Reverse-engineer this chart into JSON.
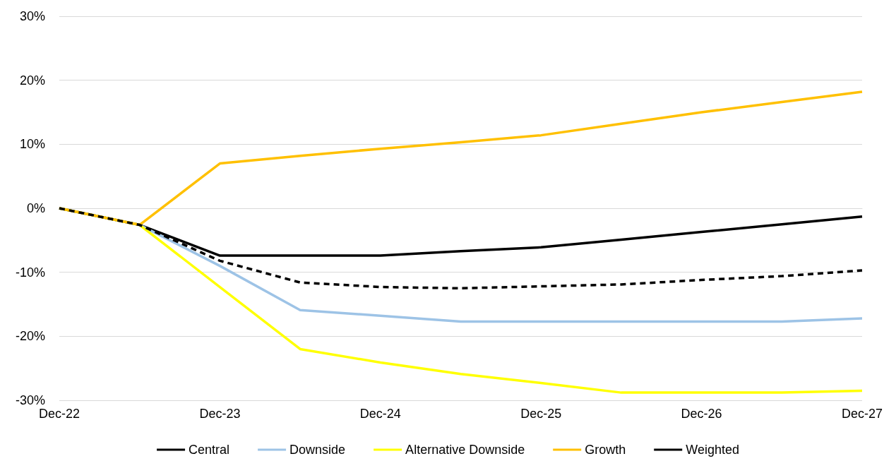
{
  "chart_data": {
    "type": "line",
    "categories": [
      "Dec-22",
      null,
      "Dec-23",
      null,
      "Dec-24",
      null,
      "Dec-25",
      null,
      "Dec-26",
      null,
      "Dec-27"
    ],
    "series": [
      {
        "name": "Central",
        "color": "#000000",
        "values": [
          0,
          -2.6,
          -7.4,
          -7.4,
          -7.4,
          -6.7,
          -6.1,
          -4.9,
          -3.7,
          -2.5,
          -1.3
        ]
      },
      {
        "name": "Downside",
        "color": "#9dc3e6",
        "values": [
          0,
          -2.6,
          -9.0,
          -15.9,
          -16.8,
          -17.7,
          -17.7,
          -17.7,
          -17.7,
          -17.7,
          -17.2
        ]
      },
      {
        "name": "Alternative Downside",
        "color": "#ffff00",
        "values": [
          0,
          -2.6,
          -12.3,
          -22.0,
          -24.1,
          -25.9,
          -27.3,
          -28.8,
          -28.8,
          -28.8,
          -28.5
        ]
      },
      {
        "name": "Growth",
        "color": "#ffc000",
        "values": [
          0,
          -2.6,
          7.0,
          8.2,
          9.3,
          10.3,
          11.4,
          13.2,
          15.0,
          16.6,
          18.2
        ]
      },
      {
        "name": "Weighted",
        "color": "#000000",
        "line_style": "dashed",
        "values": [
          0,
          -2.6,
          -8.2,
          -11.6,
          -12.3,
          -12.5,
          -12.2,
          -11.9,
          -11.2,
          -10.6,
          -9.7
        ]
      }
    ],
    "ylim": [
      -30,
      30
    ],
    "yticks": [
      {
        "value": -30,
        "label": "-30%"
      },
      {
        "value": -20,
        "label": "-20%"
      },
      {
        "value": -10,
        "label": "-10%"
      },
      {
        "value": 0,
        "label": "0%"
      },
      {
        "value": 10,
        "label": "10%"
      },
      {
        "value": 20,
        "label": "20%"
      },
      {
        "value": 30,
        "label": "30%"
      }
    ],
    "grid": "y",
    "legend": "bottom",
    "marker": "none",
    "line_style": "solid"
  }
}
